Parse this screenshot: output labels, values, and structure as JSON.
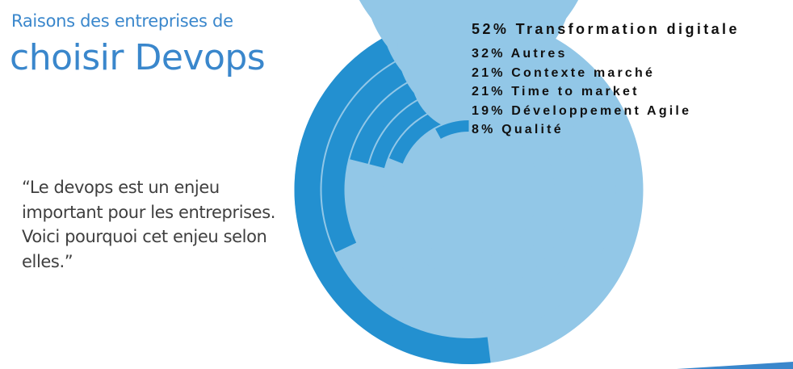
{
  "title": {
    "line1": "Raisons des entreprises de",
    "line2": "choisir Devops"
  },
  "quote": "“Le devops est un enjeu important pour les entreprises. Voici pourquoi cet enjeu selon elles.”",
  "colors": {
    "title": "#3a87cc",
    "filled": "#2390d0",
    "track": "#92c7e7",
    "quote_text": "#3f3f3f",
    "label_text": "#111111"
  },
  "chart_data": {
    "type": "radial-bar",
    "title": "Raisons des entreprises de choisir Devops",
    "categories": [
      "Transformation digitale",
      "Autres",
      "Contexte marché",
      "Time to market",
      "Développement Agile",
      "Qualité"
    ],
    "values": [
      52,
      32,
      21,
      21,
      19,
      8
    ],
    "unit": "%",
    "labels": [
      "52% Transformation digitale",
      "32% Autres",
      "21% Contexte marché",
      "21% Time to market",
      "19% Développement Agile",
      "8% Qualité"
    ],
    "max": 100,
    "direction": "counter-clockwise from top",
    "ring_order": "outermost to innermost"
  }
}
